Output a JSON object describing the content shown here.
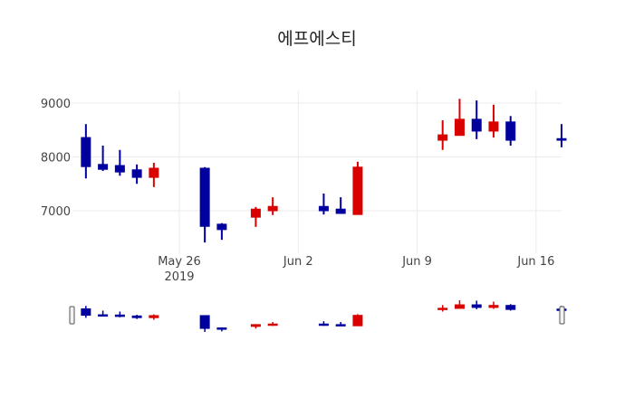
{
  "title": "에프에스티",
  "colors": {
    "increasing": "#d90000",
    "decreasing": "#00009e",
    "grid": "#ebebeb",
    "background": "#ffffff"
  },
  "chart_data": {
    "type": "candlestick",
    "title": "에프에스티",
    "xlabel": "",
    "ylabel": "",
    "ylim": [
      6350,
      9250
    ],
    "yticks": [
      7000,
      8000,
      9000
    ],
    "xticks": [
      {
        "date": "2019-05-26",
        "label": "May 26",
        "sublabel": "2019"
      },
      {
        "date": "2019-06-02",
        "label": "Jun 2"
      },
      {
        "date": "2019-06-09",
        "label": "Jun 9"
      },
      {
        "date": "2019-06-16",
        "label": "Jun 16"
      }
    ],
    "xrange": [
      "2019-05-19T17:00",
      "2019-06-17T12:00"
    ],
    "grid": true,
    "legend": false,
    "rangeslider": true,
    "increasing_color": "#d90000",
    "decreasing_color": "#00009e",
    "series": [
      {
        "date": "2019-05-20",
        "open": 8360,
        "high": 8610,
        "low": 7600,
        "close": 7820
      },
      {
        "date": "2019-05-21",
        "open": 7860,
        "high": 8210,
        "low": 7740,
        "close": 7770
      },
      {
        "date": "2019-05-22",
        "open": 7840,
        "high": 8130,
        "low": 7650,
        "close": 7720
      },
      {
        "date": "2019-05-23",
        "open": 7760,
        "high": 7860,
        "low": 7500,
        "close": 7620
      },
      {
        "date": "2019-05-24",
        "open": 7620,
        "high": 7890,
        "low": 7440,
        "close": 7790
      },
      {
        "date": "2019-05-27",
        "open": 7790,
        "high": 7810,
        "low": 6410,
        "close": 6710
      },
      {
        "date": "2019-05-28",
        "open": 6750,
        "high": 6770,
        "low": 6460,
        "close": 6650
      },
      {
        "date": "2019-05-30",
        "open": 6880,
        "high": 7070,
        "low": 6700,
        "close": 7030
      },
      {
        "date": "2019-05-31",
        "open": 7000,
        "high": 7250,
        "low": 6920,
        "close": 7080
      },
      {
        "date": "2019-06-03",
        "open": 7080,
        "high": 7320,
        "low": 6930,
        "close": 7000
      },
      {
        "date": "2019-06-04",
        "open": 7030,
        "high": 7250,
        "low": 6950,
        "close": 6950
      },
      {
        "date": "2019-06-05",
        "open": 6930,
        "high": 7910,
        "low": 6930,
        "close": 7810
      },
      {
        "date": "2019-06-10",
        "open": 8310,
        "high": 8680,
        "low": 8130,
        "close": 8410
      },
      {
        "date": "2019-06-11",
        "open": 8400,
        "high": 9080,
        "low": 8400,
        "close": 8700
      },
      {
        "date": "2019-06-12",
        "open": 8700,
        "high": 9050,
        "low": 8330,
        "close": 8480
      },
      {
        "date": "2019-06-13",
        "open": 8480,
        "high": 8970,
        "low": 8360,
        "close": 8650
      },
      {
        "date": "2019-06-14",
        "open": 8650,
        "high": 8760,
        "low": 8210,
        "close": 8310
      },
      {
        "date": "2019-06-17",
        "open": 8340,
        "high": 8610,
        "low": 8180,
        "close": 8310
      }
    ]
  }
}
